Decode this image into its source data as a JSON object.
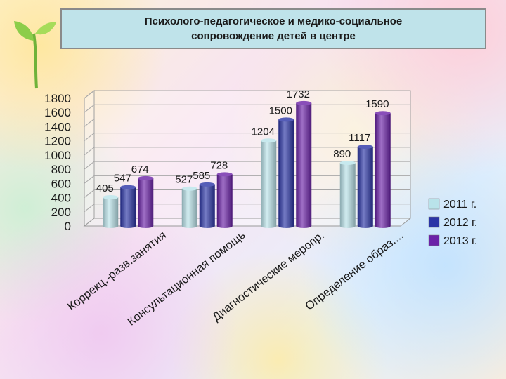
{
  "title": {
    "line1": "Психолого-педагогическое и медико-социальное",
    "line2": "сопровождение детей в центре"
  },
  "chart_data": {
    "type": "bar",
    "categories": [
      "Коррекц.-разв.занятия",
      "Консультационная помощь",
      "Диагностические меропр.",
      "Определение образ...."
    ],
    "series": [
      {
        "name": "2011 г.",
        "color": "#b9e3ea",
        "values": [
          405,
          527,
          1204,
          890
        ]
      },
      {
        "name": "2012 г.",
        "color": "#2b35a6",
        "values": [
          547,
          585,
          1500,
          1117
        ]
      },
      {
        "name": "2013 г.",
        "color": "#6b22a8",
        "values": [
          674,
          728,
          1732,
          1590
        ]
      }
    ],
    "y_ticks": [
      "0",
      "200",
      "400",
      "600",
      "800",
      "1000",
      "1200",
      "1400",
      "1600",
      "1800"
    ],
    "ylim": [
      0,
      1800
    ],
    "grid": true,
    "legend_position": "right"
  }
}
